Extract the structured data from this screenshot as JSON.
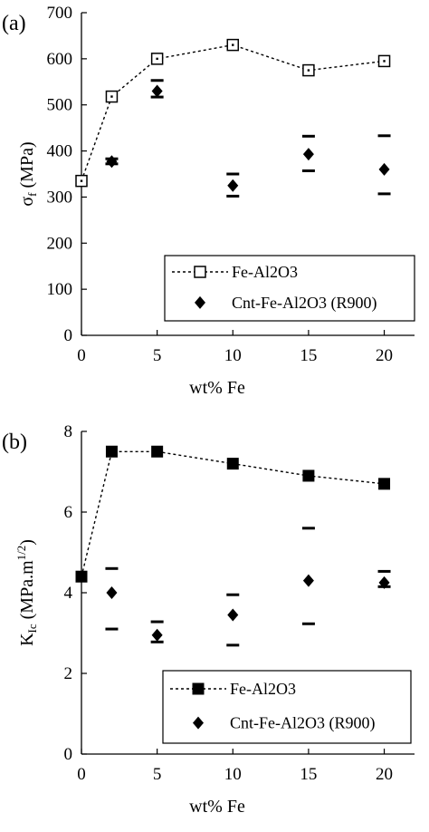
{
  "chart_data": [
    {
      "panel_label": "(a)",
      "type": "scatter",
      "xlabel": "wt% Fe",
      "ylabel": "σf (MPa)",
      "ylabel_main": "σ",
      "ylabel_sub": "f",
      "ylabel_unit": " (MPa)",
      "xlim": [
        0,
        22
      ],
      "ylim": [
        0,
        700
      ],
      "xticks": [
        0,
        5,
        10,
        15,
        20
      ],
      "yticks": [
        0,
        100,
        200,
        300,
        400,
        500,
        600,
        700
      ],
      "grid": false,
      "legend_position": "bottom-right",
      "series": [
        {
          "name": "Fe-Al2O3",
          "style": "dashed-line-open-square",
          "x": [
            0,
            2,
            5,
            10,
            15,
            20
          ],
          "y": [
            335,
            518,
            600,
            630,
            575,
            595
          ]
        },
        {
          "name": "Cnt-Fe-Al2O3 (R900)",
          "style": "filled-diamond-with-range",
          "x": [
            2,
            5,
            10,
            15,
            20
          ],
          "y": [
            377,
            530,
            325,
            393,
            360
          ],
          "range_low": [
            372,
            517,
            302,
            357,
            307
          ],
          "range_high": [
            383,
            553,
            350,
            432,
            433
          ]
        }
      ]
    },
    {
      "panel_label": "(b)",
      "type": "scatter",
      "xlabel": "wt% Fe",
      "ylabel": "K1c (MPa.m1/2)",
      "ylabel_main": "K",
      "ylabel_sub": "Ic",
      "ylabel_unit": " (MPa.m",
      "ylabel_sup": "1/2",
      "ylabel_close": ")",
      "xlim": [
        0,
        22
      ],
      "ylim": [
        0,
        8
      ],
      "xticks": [
        0,
        5,
        10,
        15,
        20
      ],
      "yticks": [
        0,
        2,
        4,
        6,
        8
      ],
      "grid": false,
      "legend_position": "bottom-right",
      "series": [
        {
          "name": "Fe-Al2O3",
          "style": "dashed-line-filled-square",
          "x": [
            0,
            2,
            5,
            10,
            15,
            20
          ],
          "y": [
            4.4,
            7.5,
            7.5,
            7.2,
            6.9,
            6.7
          ]
        },
        {
          "name": "Cnt-Fe-Al2O3 (R900)",
          "style": "filled-diamond-with-range",
          "x": [
            2,
            5,
            10,
            15,
            20
          ],
          "y": [
            4.0,
            2.95,
            3.45,
            4.3,
            4.25
          ],
          "range_low": [
            3.1,
            2.78,
            2.7,
            3.23,
            4.15
          ],
          "range_high": [
            4.6,
            3.28,
            3.95,
            5.6,
            4.53
          ]
        }
      ]
    }
  ]
}
